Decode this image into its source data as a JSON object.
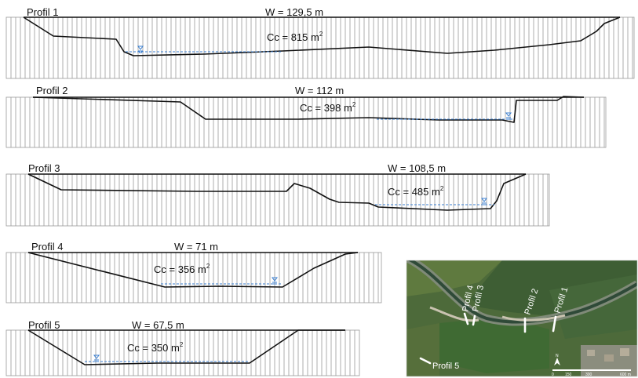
{
  "profiles": [
    {
      "name": "Profil 1",
      "width_label": "W = 129,5 m",
      "area_label": "Cc = 815 m",
      "area_unit_exp": "2"
    },
    {
      "name": "Profil 2",
      "width_label": "W = 112 m",
      "area_label": "Cc = 398 m",
      "area_unit_exp": "2"
    },
    {
      "name": "Profil 3",
      "width_label": "W = 108,5 m",
      "area_label": "Cc = 485 m",
      "area_unit_exp": "2"
    },
    {
      "name": "Profil 4",
      "width_label": "W = 71 m",
      "area_label": "Cc = 356 m",
      "area_unit_exp": "2"
    },
    {
      "name": "Profil 5",
      "width_label": "W = 67,5 m",
      "area_label": "Cc = 350 m",
      "area_unit_exp": "2"
    }
  ],
  "map": {
    "labels": [
      "Profil 4",
      "Profil 3",
      "Profil 2",
      "Profil 1",
      "Profil 5"
    ],
    "north": "N",
    "scale": [
      "0",
      "150",
      "300",
      "600 m"
    ]
  },
  "colors": {
    "terrain": "#111111",
    "water": "#3b7fd0",
    "hatch": "#9a9a9a",
    "map_field": "#4a6b36",
    "map_river": "#2f4a38"
  }
}
